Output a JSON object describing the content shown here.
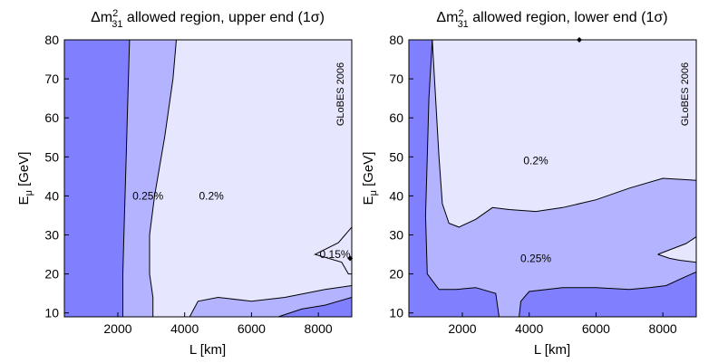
{
  "colors": {
    "level1": "#8080ff",
    "level2": "#b3b3ff",
    "level3": "#e6e6ff",
    "line": "#000000"
  },
  "chart_data": [
    {
      "type": "contour",
      "title_main": "Δm",
      "title_sup": "2",
      "title_sub": "31",
      "title_rest": " allowed region, upper end (1σ)",
      "xlabel": "L [km]",
      "ylabel_main": "E",
      "ylabel_sub": "μ",
      "ylabel_rest": " [GeV]",
      "xlim": [
        400,
        9000
      ],
      "ylim": [
        9,
        80
      ],
      "xticks": [
        "2000",
        "4000",
        "6000",
        "8000"
      ],
      "yticks": [
        "10",
        "20",
        "30",
        "40",
        "50",
        "60",
        "70",
        "80"
      ],
      "watermark": "GLoBES 2006",
      "contour_labels": [
        {
          "text": "0.25%",
          "x": 2900,
          "y": 40
        },
        {
          "text": "0.2%",
          "x": 4800,
          "y": 40
        },
        {
          "text": "0.15%",
          "x": 8500,
          "y": 25
        }
      ],
      "marker": {
        "x": 8950,
        "y": 24
      },
      "regions": [
        {
          "level": "level1",
          "polygon": [
            [
              400,
              9
            ],
            [
              2150,
              9
            ],
            [
              2150,
              20
            ],
            [
              2200,
              35
            ],
            [
              2250,
              50
            ],
            [
              2300,
              65
            ],
            [
              2350,
              80
            ],
            [
              400,
              80
            ]
          ]
        },
        {
          "level": "level2",
          "polygon": [
            [
              2150,
              9
            ],
            [
              3050,
              9
            ],
            [
              3050,
              14
            ],
            [
              2950,
              20
            ],
            [
              2950,
              30
            ],
            [
              3100,
              40
            ],
            [
              3400,
              55
            ],
            [
              3650,
              70
            ],
            [
              3750,
              80
            ],
            [
              2350,
              80
            ],
            [
              2300,
              65
            ],
            [
              2250,
              50
            ],
            [
              2200,
              35
            ],
            [
              2150,
              20
            ]
          ]
        },
        {
          "level": "level2",
          "polygon": [
            [
              4150,
              9
            ],
            [
              4400,
              13
            ],
            [
              5000,
              14
            ],
            [
              6000,
              13
            ],
            [
              7000,
              14
            ],
            [
              8200,
              16
            ],
            [
              9000,
              17
            ],
            [
              9000,
              9
            ]
          ]
        },
        {
          "level": "level1",
          "polygon": [
            [
              6800,
              9
            ],
            [
              7500,
              11
            ],
            [
              8200,
              12
            ],
            [
              9000,
              14
            ],
            [
              9000,
              9
            ]
          ]
        }
      ],
      "lines": [
        [
          [
            2150,
            9
          ],
          [
            2150,
            20
          ],
          [
            2200,
            35
          ],
          [
            2250,
            50
          ],
          [
            2300,
            65
          ],
          [
            2350,
            80
          ]
        ],
        [
          [
            3050,
            9
          ],
          [
            3050,
            14
          ],
          [
            2950,
            20
          ],
          [
            2950,
            30
          ],
          [
            3100,
            40
          ],
          [
            3400,
            55
          ],
          [
            3650,
            70
          ],
          [
            3750,
            80
          ]
        ],
        [
          [
            4150,
            9
          ],
          [
            4400,
            13
          ],
          [
            5000,
            14
          ],
          [
            6000,
            13
          ],
          [
            7000,
            14
          ],
          [
            8200,
            16
          ],
          [
            9000,
            17
          ]
        ],
        [
          [
            6800,
            9
          ],
          [
            7500,
            11
          ],
          [
            8200,
            12
          ],
          [
            9000,
            14
          ]
        ],
        [
          [
            9000,
            32
          ],
          [
            8600,
            28
          ],
          [
            7900,
            25
          ],
          [
            8700,
            23
          ],
          [
            8900,
            20
          ],
          [
            9000,
            20
          ]
        ]
      ]
    },
    {
      "type": "contour",
      "title_main": "Δm",
      "title_sup": "2",
      "title_sub": "31",
      "title_rest": " allowed region, lower end (1σ)",
      "xlabel": "L [km]",
      "ylabel_main": "E",
      "ylabel_sub": "μ",
      "ylabel_rest": " [GeV]",
      "xlim": [
        400,
        9000
      ],
      "ylim": [
        9,
        80
      ],
      "xticks": [
        "2000",
        "4000",
        "6000",
        "8000"
      ],
      "yticks": [
        "10",
        "20",
        "30",
        "40",
        "50",
        "60",
        "70",
        "80"
      ],
      "watermark": "GLoBES 2006",
      "contour_labels": [
        {
          "text": "0.2%",
          "x": 4200,
          "y": 49
        },
        {
          "text": "0.25%",
          "x": 4200,
          "y": 24
        }
      ],
      "marker": {
        "x": 5500,
        "y": 80
      },
      "regions": [
        {
          "level": "level2",
          "polygon": [
            [
              1100,
              80
            ],
            [
              1200,
              65
            ],
            [
              1300,
              50
            ],
            [
              1400,
              38
            ],
            [
              1600,
              33
            ],
            [
              1900,
              32
            ],
            [
              2400,
              34
            ],
            [
              2900,
              37
            ],
            [
              3400,
              36.5
            ],
            [
              4200,
              36
            ],
            [
              5000,
              37
            ],
            [
              6000,
              39
            ],
            [
              7000,
              42
            ],
            [
              8000,
              44.5
            ],
            [
              9000,
              44
            ],
            [
              9000,
              9
            ],
            [
              400,
              9
            ],
            [
              400,
              80
            ]
          ]
        },
        {
          "level": "level1",
          "polygon": [
            [
              400,
              80
            ],
            [
              1100,
              80
            ],
            [
              1000,
              65
            ],
            [
              950,
              50
            ],
            [
              900,
              35
            ],
            [
              950,
              20
            ],
            [
              1300,
              16
            ],
            [
              1800,
              16
            ],
            [
              2400,
              16.5
            ],
            [
              3000,
              15
            ],
            [
              3100,
              9
            ],
            [
              400,
              9
            ]
          ]
        },
        {
          "level": "level1",
          "polygon": [
            [
              3700,
              9
            ],
            [
              3750,
              13
            ],
            [
              4000,
              15.5
            ],
            [
              5000,
              16.5
            ],
            [
              6000,
              16.5
            ],
            [
              7000,
              16
            ],
            [
              7600,
              16.5
            ],
            [
              8100,
              17
            ],
            [
              8600,
              19
            ],
            [
              9000,
              20.5
            ],
            [
              9000,
              9
            ]
          ]
        },
        {
          "level": "level3",
          "polygon": [
            [
              7850,
              25
            ],
            [
              8300,
              26.5
            ],
            [
              8700,
              27.8
            ],
            [
              9000,
              29.5
            ],
            [
              9000,
              23
            ],
            [
              8500,
              23.5
            ],
            [
              8200,
              24
            ]
          ]
        }
      ],
      "lines": [
        [
          [
            1100,
            80
          ],
          [
            1200,
            65
          ],
          [
            1300,
            50
          ],
          [
            1400,
            38
          ],
          [
            1600,
            33
          ],
          [
            1900,
            32
          ],
          [
            2400,
            34
          ],
          [
            2900,
            37
          ],
          [
            3400,
            36.5
          ],
          [
            4200,
            36
          ],
          [
            5000,
            37
          ],
          [
            6000,
            39
          ],
          [
            7000,
            42
          ],
          [
            8000,
            44.5
          ],
          [
            9000,
            44
          ]
        ],
        [
          [
            1100,
            80
          ],
          [
            1000,
            65
          ],
          [
            950,
            50
          ],
          [
            900,
            35
          ],
          [
            950,
            20
          ],
          [
            1300,
            16
          ],
          [
            1800,
            16
          ],
          [
            2400,
            16.5
          ],
          [
            3000,
            15
          ],
          [
            3100,
            9
          ]
        ],
        [
          [
            3700,
            9
          ],
          [
            3750,
            13
          ],
          [
            4000,
            15.5
          ],
          [
            5000,
            16.5
          ],
          [
            6000,
            16.5
          ],
          [
            7000,
            16
          ],
          [
            7600,
            16.5
          ],
          [
            8100,
            17
          ],
          [
            8600,
            19
          ],
          [
            9000,
            20.5
          ]
        ],
        [
          [
            7850,
            25
          ],
          [
            8300,
            26.5
          ],
          [
            8700,
            27.8
          ],
          [
            9000,
            29.5
          ]
        ],
        [
          [
            7850,
            25
          ],
          [
            8200,
            24
          ],
          [
            8500,
            23.5
          ],
          [
            9000,
            23
          ]
        ]
      ]
    }
  ]
}
